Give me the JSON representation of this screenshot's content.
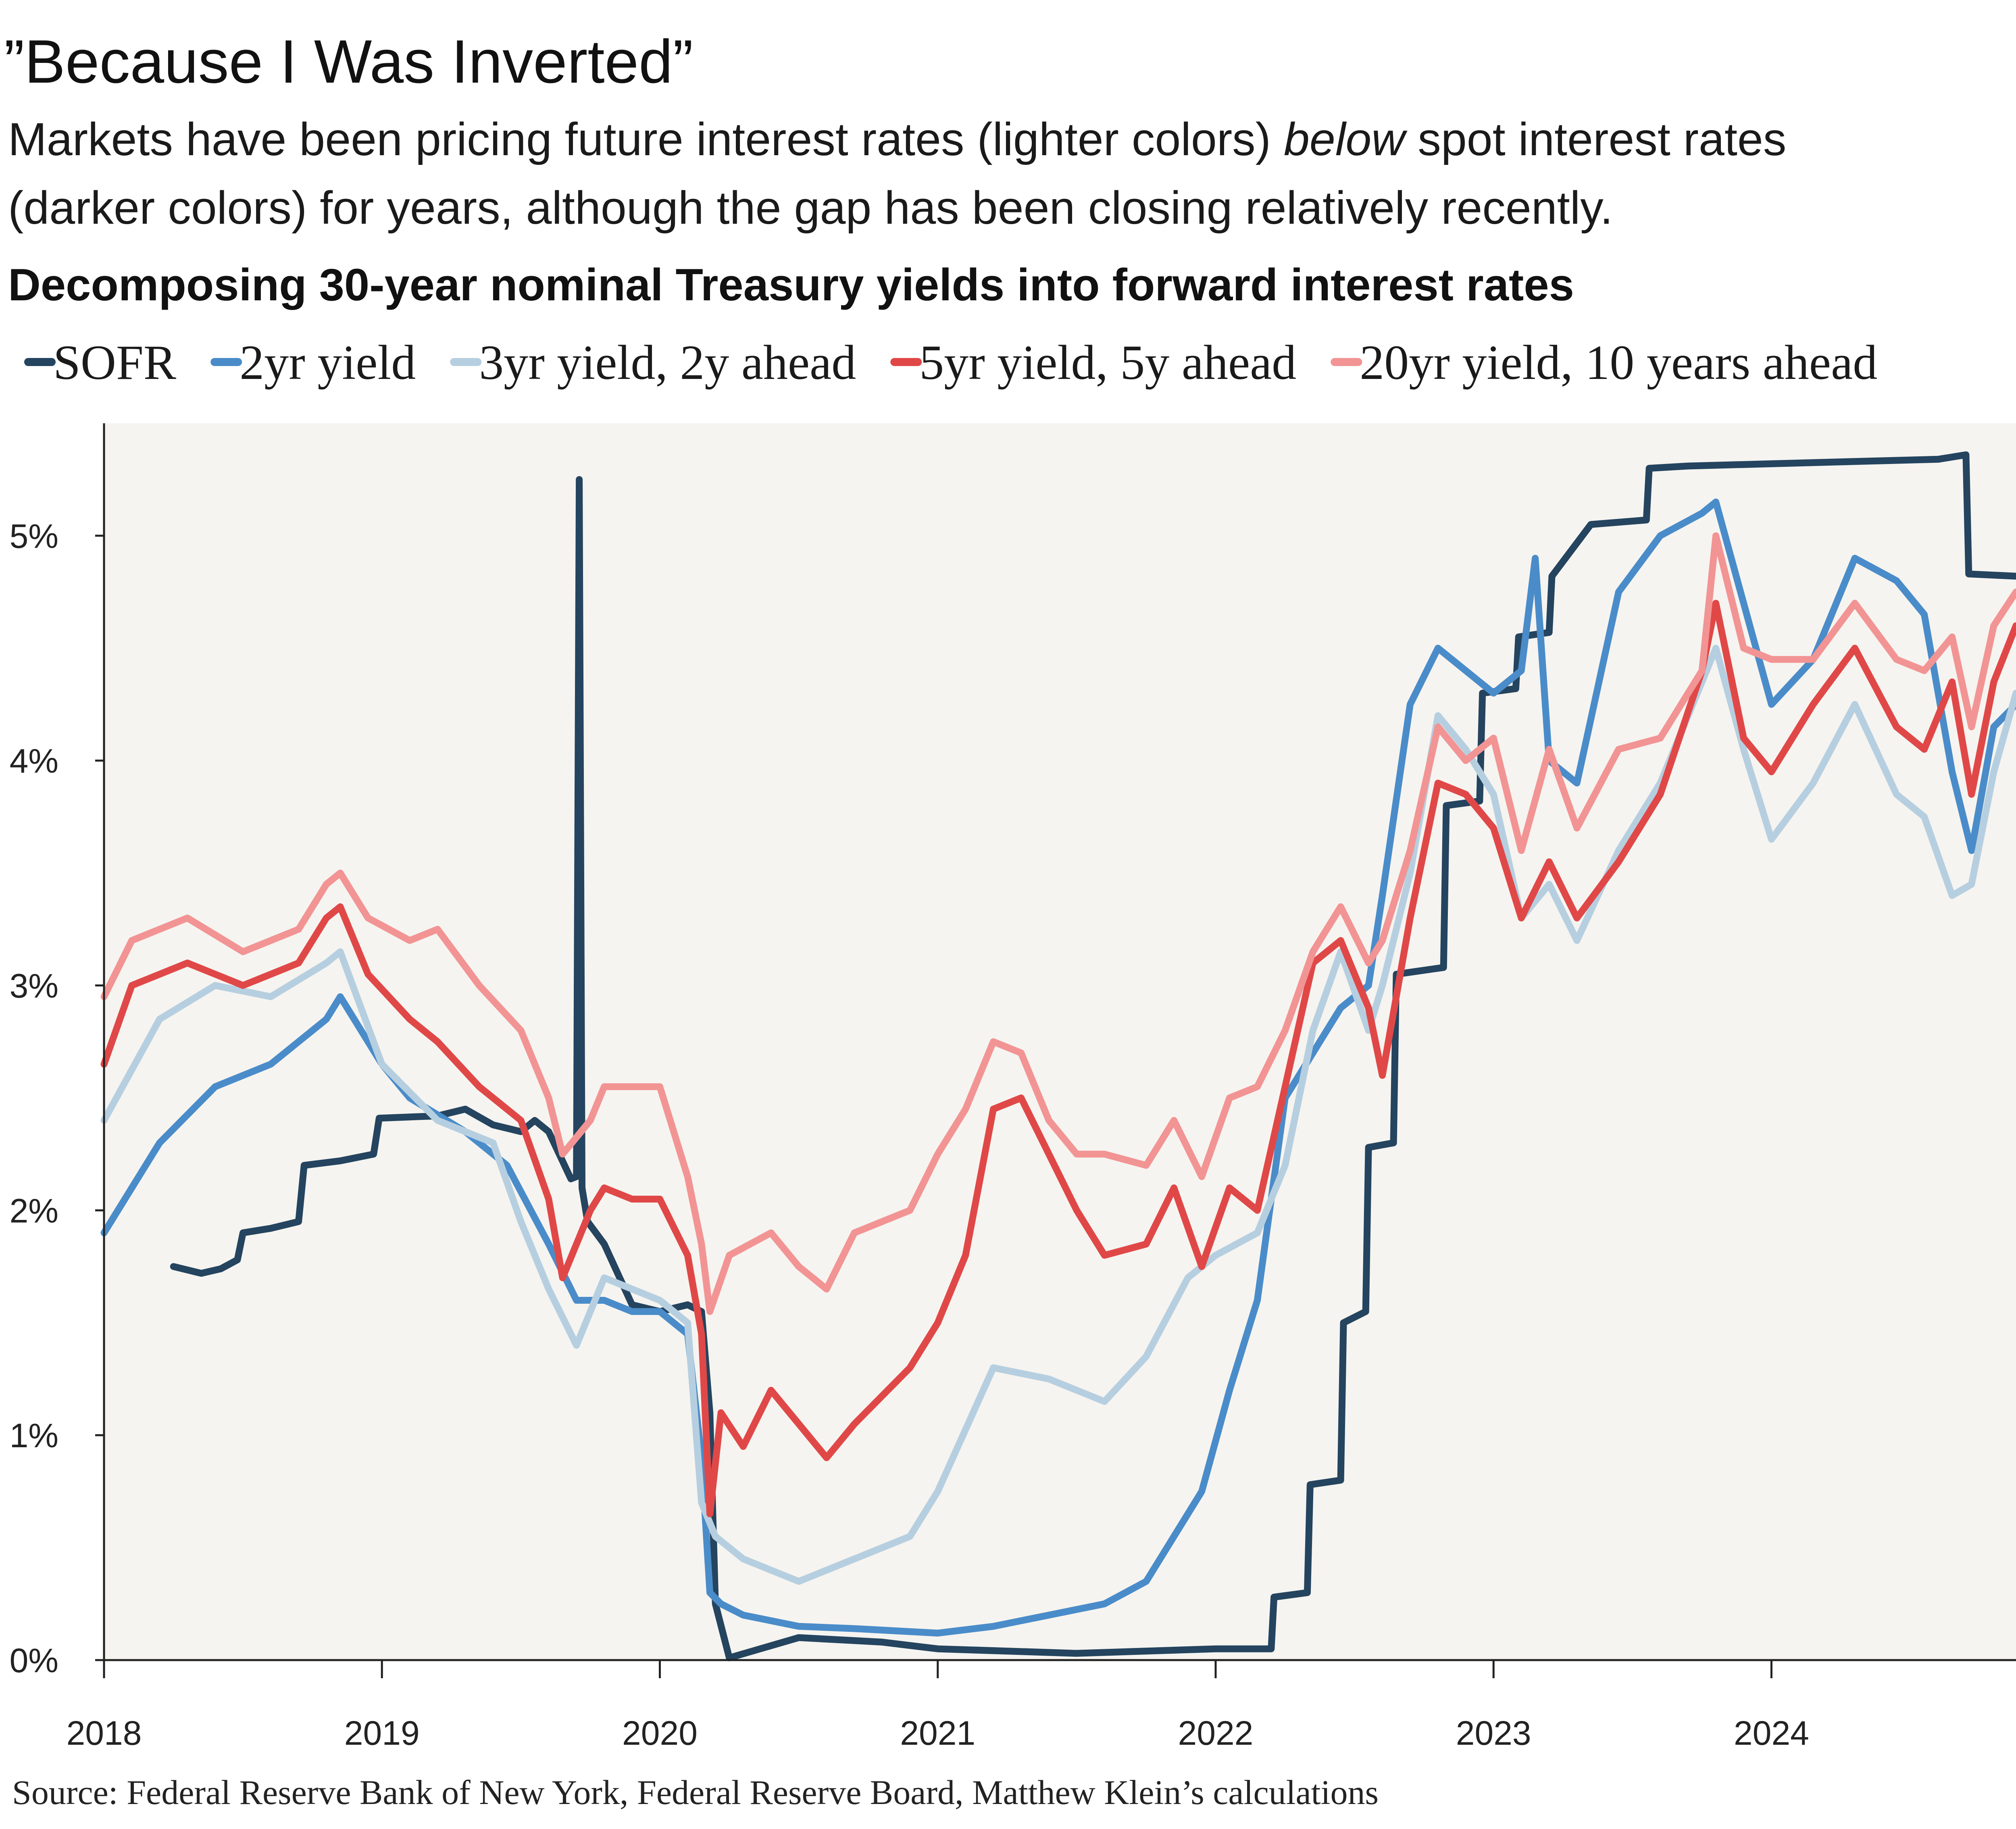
{
  "header": {
    "title": "”Because I Was Inverted”",
    "subtitle_line1_a": "Markets have been pricing future interest rates (lighter colors)",
    "subtitle_line1_em": "below",
    "subtitle_line1_b": "spot interest rates",
    "subtitle_line2": "(darker colors) for years, although the gap has been closing relatively recently."
  },
  "source": "Source: Federal Reserve Bank of New York, Federal Reserve Board, Matthew Klein’s calculations",
  "colors": {
    "sofr": "#24445f",
    "y2": "#4a8cc9",
    "y3": "#b6cfe0",
    "y5": "#e04848",
    "y20": "#f29494",
    "plot_bg": "#f6f4f0",
    "axis": "#222222"
  },
  "chart_data": {
    "type": "line",
    "title": "Decomposing 30-year nominal Treasury yields into forward interest rates",
    "xlabel": "",
    "ylabel": "",
    "xlim": [
      2018.0,
      2024.88
    ],
    "ylim": [
      0,
      5.5
    ],
    "x_ticks": [
      2018,
      2019,
      2020,
      2021,
      2022,
      2023,
      2024
    ],
    "x_tick_labels": [
      "2018",
      "2019",
      "2020",
      "2021",
      "2022",
      "2023",
      "2024"
    ],
    "y_ticks": [
      0,
      1,
      2,
      3,
      4,
      5
    ],
    "y_tick_labels": [
      "0%",
      "1%",
      "2%",
      "3%",
      "4%",
      "5%"
    ],
    "grid": false,
    "legend_position": "top",
    "series": [
      {
        "name": "SOFR",
        "color": "#24445f",
        "x": [
          2018.25,
          2018.35,
          2018.42,
          2018.48,
          2018.5,
          2018.6,
          2018.7,
          2018.72,
          2018.85,
          2018.97,
          2018.99,
          2019.2,
          2019.3,
          2019.4,
          2019.5,
          2019.55,
          2019.6,
          2019.68,
          2019.7,
          2019.71,
          2019.72,
          2019.74,
          2019.8,
          2019.9,
          2020.0,
          2020.1,
          2020.15,
          2020.18,
          2020.2,
          2020.25,
          2020.5,
          2020.8,
          2021.0,
          2021.5,
          2022.0,
          2022.2,
          2022.21,
          2022.33,
          2022.34,
          2022.45,
          2022.46,
          2022.54,
          2022.55,
          2022.64,
          2022.65,
          2022.82,
          2022.83,
          2022.95,
          2022.96,
          2023.08,
          2023.09,
          2023.2,
          2023.21,
          2023.35,
          2023.55,
          2023.56,
          2023.7,
          2024.0,
          2024.3,
          2024.6,
          2024.7,
          2024.71,
          2024.88
        ],
        "y": [
          1.75,
          1.72,
          1.74,
          1.78,
          1.9,
          1.92,
          1.95,
          2.2,
          2.22,
          2.25,
          2.41,
          2.42,
          2.45,
          2.38,
          2.35,
          2.4,
          2.35,
          2.14,
          2.15,
          5.25,
          2.1,
          1.95,
          1.85,
          1.58,
          1.55,
          1.58,
          1.55,
          1.1,
          0.25,
          0.01,
          0.1,
          0.08,
          0.05,
          0.03,
          0.05,
          0.05,
          0.28,
          0.3,
          0.78,
          0.8,
          1.5,
          1.55,
          2.28,
          2.3,
          3.05,
          3.08,
          3.8,
          3.82,
          4.3,
          4.32,
          4.55,
          4.57,
          4.82,
          5.05,
          5.07,
          5.3,
          5.31,
          5.32,
          5.33,
          5.34,
          5.36,
          4.83,
          4.82
        ]
      },
      {
        "name": "2yr yield",
        "color": "#4a8cc9",
        "x": [
          2018.0,
          2018.2,
          2018.4,
          2018.6,
          2018.8,
          2018.85,
          2019.0,
          2019.1,
          2019.3,
          2019.45,
          2019.6,
          2019.7,
          2019.8,
          2019.9,
          2020.0,
          2020.1,
          2020.15,
          2020.18,
          2020.22,
          2020.3,
          2020.5,
          2020.7,
          2021.0,
          2021.2,
          2021.4,
          2021.6,
          2021.75,
          2021.85,
          2021.95,
          2022.05,
          2022.15,
          2022.25,
          2022.35,
          2022.45,
          2022.55,
          2022.6,
          2022.7,
          2022.8,
          2022.9,
          2023.0,
          2023.1,
          2023.15,
          2023.2,
          2023.3,
          2023.45,
          2023.6,
          2023.75,
          2023.8,
          2023.9,
          2024.0,
          2024.15,
          2024.3,
          2024.45,
          2024.55,
          2024.65,
          2024.72,
          2024.8,
          2024.88
        ],
        "y": [
          1.9,
          2.3,
          2.55,
          2.65,
          2.85,
          2.95,
          2.65,
          2.5,
          2.35,
          2.2,
          1.85,
          1.6,
          1.6,
          1.55,
          1.55,
          1.45,
          0.9,
          0.3,
          0.25,
          0.2,
          0.15,
          0.14,
          0.12,
          0.15,
          0.2,
          0.25,
          0.35,
          0.55,
          0.75,
          1.2,
          1.6,
          2.5,
          2.7,
          2.9,
          3.0,
          3.4,
          4.25,
          4.5,
          4.4,
          4.3,
          4.4,
          4.9,
          4.0,
          3.9,
          4.75,
          5.0,
          5.1,
          5.15,
          4.7,
          4.25,
          4.45,
          4.9,
          4.8,
          4.65,
          3.95,
          3.6,
          4.15,
          4.25
        ]
      },
      {
        "name": "3yr yield, 2y ahead",
        "color": "#b6cfe0",
        "x": [
          2018.0,
          2018.2,
          2018.4,
          2018.6,
          2018.8,
          2018.85,
          2019.0,
          2019.2,
          2019.4,
          2019.5,
          2019.6,
          2019.7,
          2019.8,
          2019.9,
          2020.0,
          2020.1,
          2020.15,
          2020.2,
          2020.3,
          2020.5,
          2020.7,
          2020.9,
          2021.0,
          2021.2,
          2021.4,
          2021.6,
          2021.75,
          2021.9,
          2022.0,
          2022.15,
          2022.25,
          2022.35,
          2022.45,
          2022.55,
          2022.6,
          2022.7,
          2022.8,
          2022.9,
          2023.0,
          2023.1,
          2023.2,
          2023.3,
          2023.45,
          2023.6,
          2023.75,
          2023.8,
          2023.9,
          2024.0,
          2024.15,
          2024.3,
          2024.45,
          2024.55,
          2024.65,
          2024.72,
          2024.8,
          2024.88
        ],
        "y": [
          2.4,
          2.85,
          3.0,
          2.95,
          3.1,
          3.15,
          2.65,
          2.4,
          2.3,
          1.95,
          1.65,
          1.4,
          1.7,
          1.65,
          1.6,
          1.5,
          0.7,
          0.55,
          0.45,
          0.35,
          0.45,
          0.55,
          0.75,
          1.3,
          1.25,
          1.15,
          1.35,
          1.7,
          1.8,
          1.9,
          2.2,
          2.8,
          3.15,
          2.8,
          3.0,
          3.5,
          4.2,
          4.05,
          3.85,
          3.3,
          3.45,
          3.2,
          3.6,
          3.9,
          4.35,
          4.5,
          4.05,
          3.65,
          3.9,
          4.25,
          3.85,
          3.75,
          3.4,
          3.45,
          3.95,
          4.3
        ]
      },
      {
        "name": "5yr yield, 5y ahead",
        "color": "#e04848",
        "x": [
          2018.0,
          2018.1,
          2018.3,
          2018.5,
          2018.7,
          2018.8,
          2018.85,
          2018.95,
          2019.1,
          2019.2,
          2019.35,
          2019.5,
          2019.6,
          2019.65,
          2019.75,
          2019.8,
          2019.9,
          2020.0,
          2020.1,
          2020.15,
          2020.18,
          2020.22,
          2020.3,
          2020.4,
          2020.5,
          2020.6,
          2020.7,
          2020.9,
          2021.0,
          2021.1,
          2021.2,
          2021.3,
          2021.4,
          2021.5,
          2021.6,
          2021.75,
          2021.85,
          2021.95,
          2022.05,
          2022.15,
          2022.25,
          2022.35,
          2022.45,
          2022.55,
          2022.6,
          2022.7,
          2022.8,
          2022.9,
          2023.0,
          2023.1,
          2023.2,
          2023.3,
          2023.45,
          2023.6,
          2023.75,
          2023.8,
          2023.9,
          2024.0,
          2024.15,
          2024.3,
          2024.45,
          2024.55,
          2024.65,
          2024.72,
          2024.8,
          2024.88
        ],
        "y": [
          2.65,
          3.0,
          3.1,
          3.0,
          3.1,
          3.3,
          3.35,
          3.05,
          2.85,
          2.75,
          2.55,
          2.4,
          2.05,
          1.7,
          2.0,
          2.1,
          2.05,
          2.05,
          1.8,
          1.45,
          0.65,
          1.1,
          0.95,
          1.2,
          1.05,
          0.9,
          1.05,
          1.3,
          1.5,
          1.8,
          2.45,
          2.5,
          2.25,
          2.0,
          1.8,
          1.85,
          2.1,
          1.75,
          2.1,
          2.0,
          2.55,
          3.1,
          3.2,
          2.9,
          2.6,
          3.3,
          3.9,
          3.85,
          3.7,
          3.3,
          3.55,
          3.3,
          3.55,
          3.85,
          4.4,
          4.7,
          4.1,
          3.95,
          4.25,
          4.5,
          4.15,
          4.05,
          4.35,
          3.85,
          4.35,
          4.6
        ]
      },
      {
        "name": "20yr yield, 10 years ahead",
        "color": "#f29494",
        "x": [
          2018.0,
          2018.1,
          2018.3,
          2018.5,
          2018.7,
          2018.8,
          2018.85,
          2018.95,
          2019.1,
          2019.2,
          2019.35,
          2019.5,
          2019.6,
          2019.65,
          2019.75,
          2019.8,
          2019.9,
          2020.0,
          2020.1,
          2020.15,
          2020.18,
          2020.25,
          2020.4,
          2020.5,
          2020.6,
          2020.7,
          2020.9,
          2021.0,
          2021.1,
          2021.2,
          2021.3,
          2021.4,
          2021.5,
          2021.6,
          2021.75,
          2021.85,
          2021.95,
          2022.05,
          2022.15,
          2022.25,
          2022.35,
          2022.45,
          2022.55,
          2022.6,
          2022.7,
          2022.8,
          2022.9,
          2023.0,
          2023.1,
          2023.2,
          2023.3,
          2023.45,
          2023.6,
          2023.75,
          2023.8,
          2023.9,
          2024.0,
          2024.15,
          2024.3,
          2024.45,
          2024.55,
          2024.65,
          2024.72,
          2024.8,
          2024.88
        ],
        "y": [
          2.95,
          3.2,
          3.3,
          3.15,
          3.25,
          3.45,
          3.5,
          3.3,
          3.2,
          3.25,
          3.0,
          2.8,
          2.5,
          2.25,
          2.4,
          2.55,
          2.55,
          2.55,
          2.15,
          1.85,
          1.55,
          1.8,
          1.9,
          1.75,
          1.65,
          1.9,
          2.0,
          2.25,
          2.45,
          2.75,
          2.7,
          2.4,
          2.25,
          2.25,
          2.2,
          2.4,
          2.15,
          2.5,
          2.55,
          2.8,
          3.15,
          3.35,
          3.1,
          3.2,
          3.6,
          4.15,
          4.0,
          4.1,
          3.6,
          4.05,
          3.7,
          4.05,
          4.1,
          4.4,
          5.0,
          4.5,
          4.45,
          4.45,
          4.7,
          4.45,
          4.4,
          4.55,
          4.15,
          4.6,
          4.75
        ]
      }
    ]
  }
}
